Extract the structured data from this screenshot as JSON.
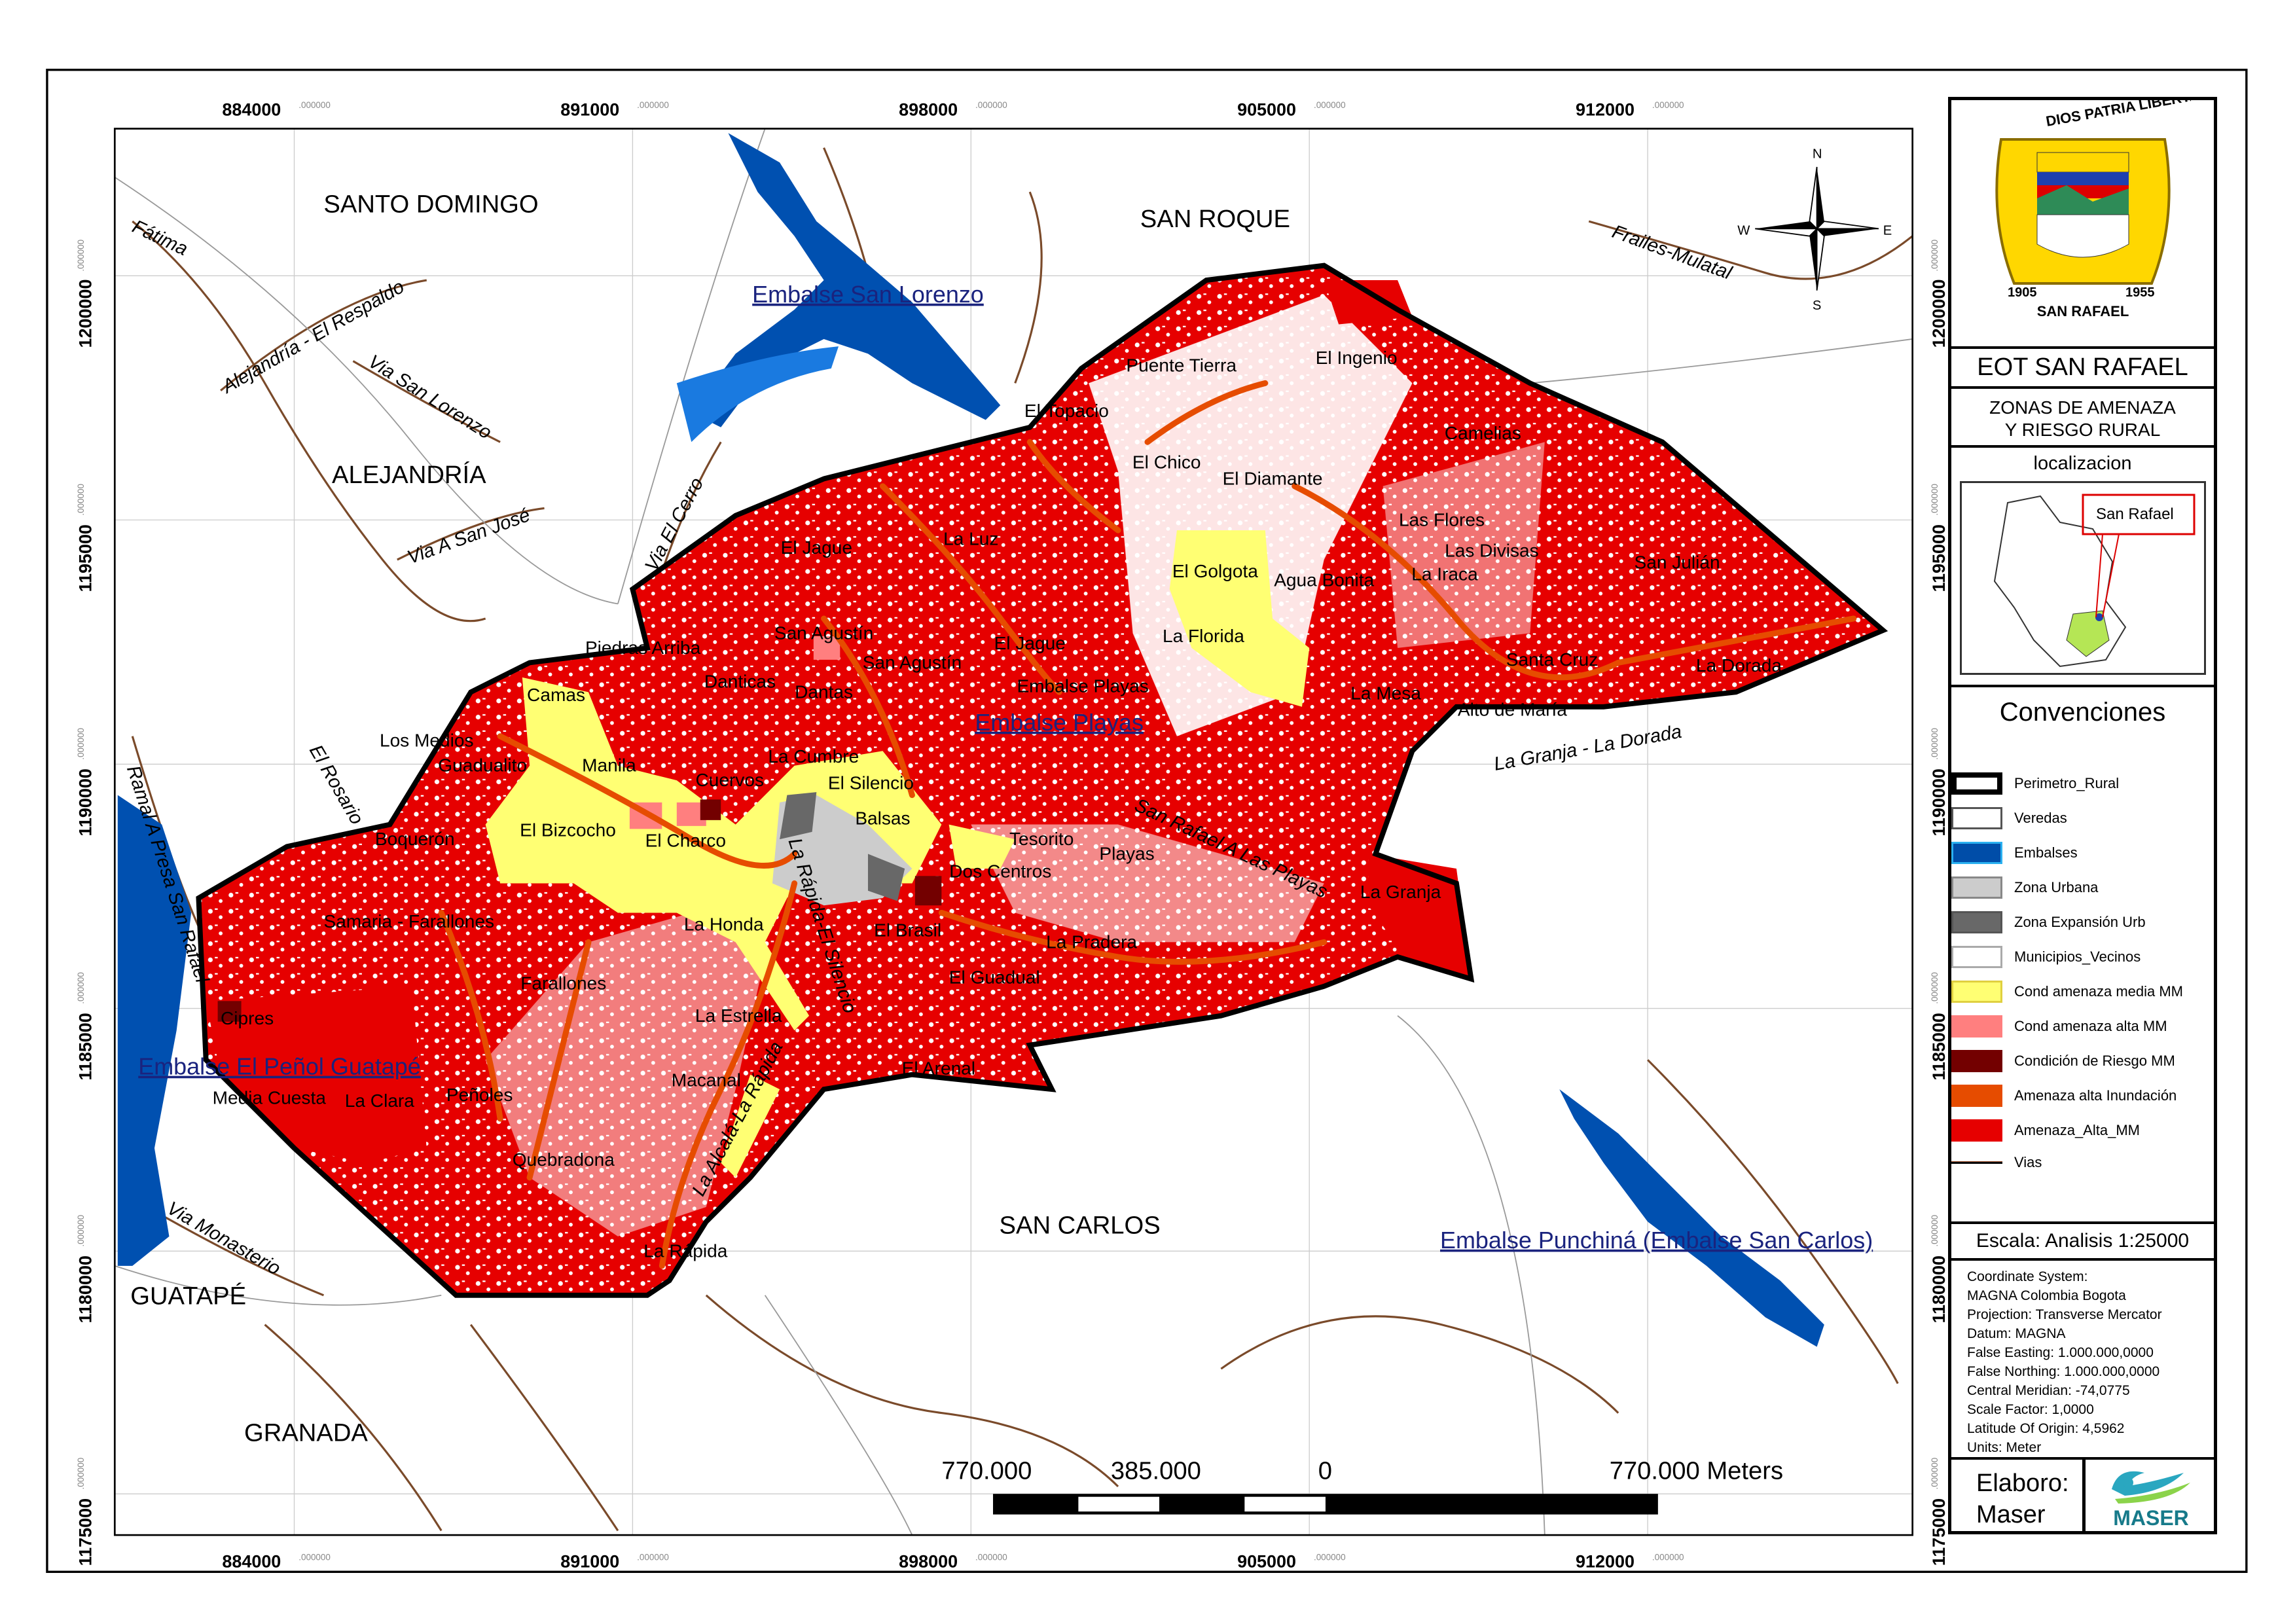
{
  "map": {
    "x_ticks": [
      "884000",
      "891000",
      "898000",
      "905000",
      "912000"
    ],
    "y_ticks": [
      "1200000",
      "1195000",
      "1190000",
      "1185000",
      "1180000",
      "1175000"
    ],
    "tick_suffix": ".000000",
    "municipalities": [
      "SANTO DOMINGO",
      "SAN ROQUE",
      "ALEJANDRÍA",
      "SAN CARLOS",
      "GUATAPÉ",
      "GRANADA"
    ],
    "reservoirs": [
      "Embalse San Lorenzo",
      "Embalse Playas",
      "Embalse El Peñol Guatapé",
      "Embalse Punchiná (Embalse San Carlos)"
    ],
    "roads": [
      "Fátima",
      "Alejandría - El Respaldo",
      "Via San Lorenzo",
      "Via A San José",
      "Via El Cerro",
      "Frailes-Mulatal",
      "Ramal A Presa San Rafael",
      "Via Monasterio",
      "San Rafael A Las Playas",
      "La Granja - La Dorada",
      "El Rosario",
      "La Rápida-El Silencio",
      "La Alcalá-La Rápida"
    ],
    "veredas": [
      "Puente Tierra",
      "El Ingenio",
      "El Topacio",
      "Camelias",
      "El Chico",
      "El Diamante",
      "El Jague",
      "La Luz",
      "Las Flores",
      "Las Divisas",
      "San Julián",
      "El Golgota",
      "Agua Bonita",
      "La Iraca",
      "San Agustín",
      "San Agustín",
      "El Jague",
      "La Florida",
      "Piedras Arriba",
      "Danticas",
      "Dantas",
      "Embalse Playas",
      "La Mesa",
      "Santa Cruz",
      "La Dorada",
      "Camas",
      "Alto de María",
      "Los Medios",
      "La Cumbre",
      "Guadualito",
      "Manila",
      "El Silencio",
      "Cuervos",
      "Balsas",
      "El Bizcocho",
      "El Charco",
      "Boquerón",
      "Tesorito",
      "Playas",
      "Dos Centros",
      "Samaria - Farallones",
      "La Honda",
      "El Brasil",
      "La Pradera",
      "Farallones",
      "Cipres",
      "El Guadual",
      "La Estrella",
      "Media Cuesta",
      "La Clara",
      "Peñoles",
      "Macanal",
      "El Arenal",
      "Quebradona",
      "La Rápida",
      "La Granja"
    ],
    "north_arrow": {
      "n": "N",
      "s": "S",
      "e": "E",
      "w": "W"
    },
    "scale_bar": {
      "labels": [
        "770.000",
        "385.000",
        "0",
        "770.000 Meters"
      ]
    }
  },
  "panel": {
    "logo": {
      "motto": "DIOS PATRIA LIBERTAD",
      "year_left": "1905",
      "year_right": "1955",
      "name": "SAN RAFAEL"
    },
    "title": "EOT SAN RAFAEL",
    "subtitle_1": "ZONAS DE AMENAZA",
    "subtitle_2": "Y RIESGO  RURAL",
    "location_title": "localizacion",
    "location_label": "San Rafael",
    "legend_title": "Convenciones",
    "legend": [
      {
        "label": "Perimetro_Rural",
        "color": "#ffffff",
        "border": "#000000"
      },
      {
        "label": "Veredas",
        "color": "#ffffff",
        "border": "#555555"
      },
      {
        "label": "Embalses",
        "color": "#004da8",
        "border": "#2ab0f0"
      },
      {
        "label": "Zona Urbana",
        "color": "#cccccc",
        "border": "#888888"
      },
      {
        "label": "Zona Expansión Urb",
        "color": "#686868",
        "border": "#555555"
      },
      {
        "label": "Municipios_Vecinos",
        "color": "#ffffff",
        "border": "#aaaaaa"
      },
      {
        "label": "Cond amenaza media MM",
        "color": "#ffff73",
        "border": "#e0d040"
      },
      {
        "label": "Cond amenaza alta MM",
        "color": "#ff7f7f",
        "border": "#ff7f7f"
      },
      {
        "label": "Condición de Riesgo MM",
        "color": "#730000",
        "border": "#730000"
      },
      {
        "label": "Amenaza alta Inundación",
        "color": "#e64c00",
        "border": "#e64c00"
      },
      {
        "label": "Amenaza_Alta_MM",
        "color": "#e60000",
        "border": "#e60000"
      },
      {
        "label": "Vias",
        "color": "#000000",
        "border": "#a0522d"
      }
    ],
    "scale": "Escala: Analisis 1:25000",
    "coordinate_info": [
      "Coordinate System:",
      "MAGNA Colombia Bogota",
      "Projection: Transverse Mercator",
      "Datum: MAGNA",
      "False Easting: 1.000.000,0000",
      "False Northing: 1.000.000,0000",
      "Central Meridian: -74,0775",
      "Scale Factor: 1,0000",
      "Latitude Of Origin: 4,5962",
      "Units: Meter"
    ],
    "elaboro_1": "Elaboro:",
    "elaboro_2": "Maser",
    "maser_logo": "MASER"
  }
}
